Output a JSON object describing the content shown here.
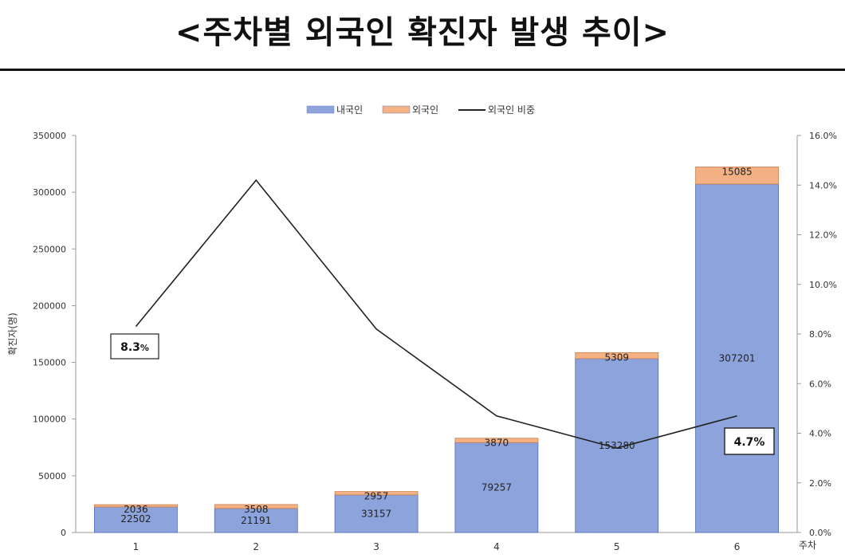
{
  "title": "<주차별 외국인 확진자 발생 추이>",
  "chart_data": {
    "type": "bar",
    "categories": [
      "1",
      "2",
      "3",
      "4",
      "5",
      "6"
    ],
    "series": [
      {
        "name": "내국인",
        "values": [
          22502,
          21191,
          33157,
          79257,
          153280,
          307201
        ],
        "color": "#8da3dc"
      },
      {
        "name": "외국인",
        "values": [
          2036,
          3508,
          2957,
          3870,
          5309,
          15085
        ],
        "color": "#f4b183"
      },
      {
        "name": "외국인 비중",
        "type": "line",
        "axis": "right",
        "values": [
          8.3,
          14.2,
          8.2,
          4.7,
          3.4,
          4.7
        ],
        "color": "#222222"
      }
    ],
    "stacked": true,
    "ylabel": "확진자(명)",
    "xlabel": "주차",
    "ylim": [
      0,
      350000
    ],
    "yticks": [
      "0",
      "50000",
      "100000",
      "150000",
      "200000",
      "250000",
      "300000",
      "350000"
    ],
    "y2lim": [
      0,
      16
    ],
    "y2ticks": [
      "0.0%",
      "2.0%",
      "4.0%",
      "6.0%",
      "8.0%",
      "10.0%",
      "12.0%",
      "14.0%",
      "16.0%"
    ],
    "callouts": [
      {
        "text": "8.3",
        "unit": "%",
        "week": 1
      },
      {
        "text": "4.7%",
        "unit": "",
        "week": 6
      }
    ],
    "legend": "top-center",
    "grid": false
  }
}
